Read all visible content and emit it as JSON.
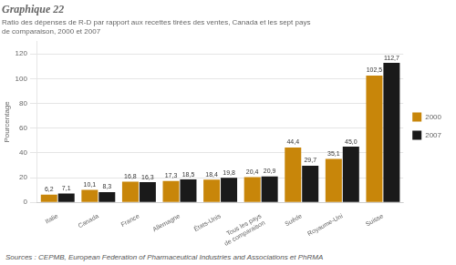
{
  "chart_data": {
    "type": "bar",
    "title": "Graphique 22",
    "subtitle": "Ratio des dépenses de R-D par rapport aux recettes tirées des ventes, Canada et les sept pays\nde comparaison, 2000 et 2007",
    "ylabel": "Pourcentage",
    "annotations": [
      "Sources : CEPMB, European Federation of Pharmaceutical Industries and Associations et PhRMA"
    ],
    "categories": [
      "Italie",
      "Canada",
      "France",
      "Allemagne",
      "États-Unis",
      "Tous les pays\nde comparaison",
      "Suède",
      "Royaume-Uni",
      "Suisse"
    ],
    "series": [
      {
        "name": "2000",
        "color": "#C8860A",
        "values": [
          6.2,
          10.1,
          16.8,
          17.3,
          18.4,
          20.4,
          44.4,
          35.1,
          102.5
        ],
        "value_labels": [
          "6,2",
          "10,1",
          "16,8",
          "17,3",
          "18,4",
          "20,4",
          "44,4",
          "35,1",
          "102,5"
        ]
      },
      {
        "name": "2007",
        "color": "#1A1A1A",
        "values": [
          7.1,
          8.3,
          16.3,
          18.5,
          19.8,
          20.9,
          29.7,
          45.0,
          112.7
        ],
        "value_labels": [
          "7,1",
          "8,3",
          "16,3",
          "18,5",
          "19,8",
          "20,9",
          "29,7",
          "45,0",
          "112,7"
        ]
      }
    ],
    "ylim": [
      0,
      130
    ],
    "yticks": [
      0,
      20,
      40,
      60,
      80,
      100,
      120
    ],
    "grid": true,
    "legend": "right",
    "data_labels": true
  }
}
